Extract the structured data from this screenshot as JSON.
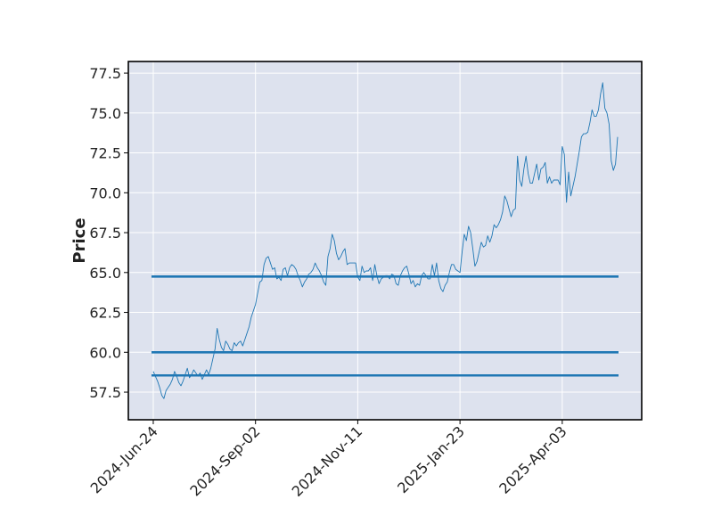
{
  "chart_data": {
    "type": "line",
    "ylabel": "Price",
    "categories": [
      "2024-Jun-24",
      null,
      null,
      null,
      null,
      null,
      null,
      null,
      null,
      null,
      null,
      null,
      null,
      null,
      null,
      null,
      null,
      null,
      null,
      null,
      null,
      null,
      null,
      null,
      null,
      null,
      null,
      null,
      null,
      null,
      null,
      null,
      null,
      null,
      null,
      null,
      null,
      null,
      null,
      null,
      null,
      null,
      null,
      null,
      null,
      null,
      null,
      null,
      "2024-Sep-02",
      null,
      null,
      null,
      null,
      null,
      null,
      null,
      null,
      null,
      null,
      null,
      null,
      null,
      null,
      null,
      null,
      null,
      null,
      null,
      null,
      null,
      null,
      null,
      null,
      null,
      null,
      null,
      null,
      null,
      null,
      null,
      null,
      null,
      null,
      null,
      null,
      null,
      null,
      null,
      null,
      null,
      null,
      null,
      null,
      null,
      null,
      null,
      "2024-Nov-11",
      null,
      null,
      null,
      null,
      null,
      null,
      null,
      null,
      null,
      null,
      null,
      null,
      null,
      null,
      null,
      null,
      null,
      null,
      null,
      null,
      null,
      null,
      null,
      null,
      null,
      null,
      null,
      null,
      null,
      null,
      null,
      null,
      null,
      null,
      null,
      null,
      null,
      null,
      null,
      null,
      null,
      null,
      null,
      null,
      null,
      null,
      null,
      "2025-Jan-23",
      null,
      null,
      null,
      null,
      null,
      null,
      null,
      null,
      null,
      null,
      null,
      null,
      null,
      null,
      null,
      null,
      null,
      null,
      null,
      null,
      null,
      null,
      null,
      null,
      null,
      null,
      null,
      null,
      null,
      null,
      null,
      null,
      null,
      null,
      null,
      null,
      null,
      null,
      null,
      null,
      null,
      null,
      null,
      null,
      null,
      null,
      null,
      "2025-Apr-03",
      null,
      null,
      null,
      null,
      null,
      null,
      null,
      null,
      null,
      null,
      null,
      null,
      null,
      null,
      null,
      null,
      null,
      null,
      null,
      null,
      null,
      null,
      null,
      null,
      null,
      null
    ],
    "values": [
      58.8,
      58.5,
      58.2,
      57.8,
      57.3,
      57.1,
      57.6,
      57.8,
      58.0,
      58.3,
      58.8,
      58.5,
      58.1,
      57.9,
      58.2,
      58.6,
      59.0,
      58.4,
      58.6,
      58.9,
      58.7,
      58.5,
      58.7,
      58.3,
      58.6,
      58.9,
      58.6,
      59.0,
      59.6,
      60.2,
      61.5,
      60.8,
      60.3,
      60.1,
      60.7,
      60.5,
      60.2,
      60.1,
      60.6,
      60.4,
      60.6,
      60.7,
      60.4,
      60.8,
      61.2,
      61.6,
      62.2,
      62.6,
      63.0,
      63.7,
      64.4,
      64.5,
      65.5,
      65.9,
      66.0,
      65.6,
      65.2,
      65.3,
      64.6,
      64.7,
      64.5,
      65.2,
      65.3,
      64.8,
      65.3,
      65.5,
      65.4,
      65.2,
      64.8,
      64.5,
      64.1,
      64.4,
      64.6,
      64.9,
      65.0,
      65.2,
      65.6,
      65.3,
      65.1,
      64.8,
      64.4,
      64.2,
      66.0,
      66.5,
      67.4,
      67.0,
      66.2,
      65.8,
      66.0,
      66.3,
      66.5,
      65.5,
      65.6,
      65.6,
      65.6,
      65.6,
      64.7,
      64.5,
      65.4,
      65.0,
      65.1,
      65.1,
      65.3,
      64.5,
      65.5,
      64.8,
      64.3,
      64.6,
      64.7,
      64.8,
      64.8,
      64.6,
      64.9,
      64.8,
      64.3,
      64.2,
      64.8,
      65.1,
      65.3,
      65.4,
      64.9,
      64.3,
      64.5,
      64.1,
      64.3,
      64.2,
      64.8,
      65.0,
      64.8,
      64.6,
      64.6,
      65.5,
      64.8,
      65.6,
      64.5,
      64.0,
      63.8,
      64.2,
      64.4,
      65.0,
      65.5,
      65.5,
      65.2,
      65.1,
      65.0,
      66.3,
      67.4,
      67.0,
      67.9,
      67.5,
      66.5,
      65.4,
      65.7,
      66.3,
      66.9,
      66.6,
      66.7,
      67.3,
      66.9,
      67.3,
      68.0,
      67.8,
      68.0,
      68.3,
      68.8,
      69.8,
      69.5,
      69.0,
      68.5,
      68.9,
      69.0,
      72.3,
      70.8,
      70.4,
      71.5,
      72.3,
      71.2,
      70.6,
      70.6,
      71.2,
      71.8,
      70.8,
      71.5,
      71.6,
      71.9,
      70.6,
      71.0,
      70.6,
      70.8,
      70.8,
      70.8,
      70.5,
      72.9,
      72.4,
      69.4,
      71.3,
      69.8,
      70.4,
      71.0,
      71.8,
      72.6,
      73.5,
      73.7,
      73.7,
      73.8,
      74.4,
      75.2,
      74.8,
      74.8,
      75.2,
      76.2,
      76.9,
      75.3,
      75.0,
      74.3,
      72.0,
      71.4,
      71.8,
      73.5
    ],
    "color": "#1f77b4",
    "hlines": {
      "values": [
        64.75,
        60,
        58.55
      ],
      "color": "#1f77b4"
    },
    "xlim": [
      -11.7,
      229.3
    ],
    "ylim": [
      55.77,
      78.23
    ],
    "yticks": [
      57.5,
      {
        "value": 60,
        "label": "60.0"
      },
      62.5,
      {
        "value": 65,
        "label": "65.0"
      },
      67.5,
      {
        "value": 70,
        "label": "70.0"
      },
      72.5,
      {
        "value": 75,
        "label": "75.0"
      },
      77.5
    ],
    "grid": true,
    "background": "#dde2ee"
  }
}
